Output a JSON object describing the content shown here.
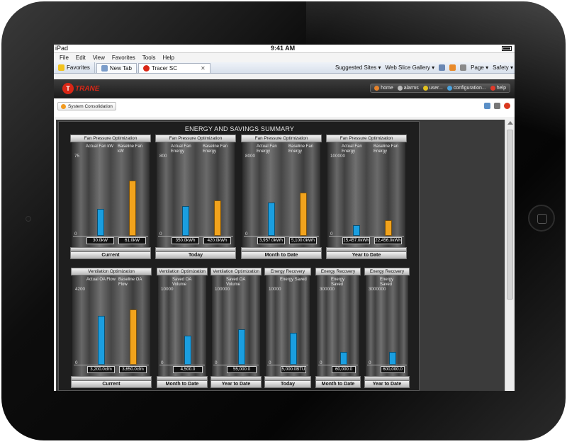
{
  "device": {
    "carrier": "iPad",
    "time": "9:41 AM"
  },
  "browser": {
    "menu": [
      "File",
      "Edit",
      "View",
      "Favorites",
      "Tools",
      "Help"
    ],
    "favorites_label": "Favorites",
    "tabs": [
      {
        "label": "New Tab"
      },
      {
        "label": "Tracer SC"
      }
    ],
    "tools": {
      "suggested": "Suggested Sites ▾",
      "webslice": "Web Slice Gallery ▾",
      "page": "Page ▾",
      "safety": "Safety ▾"
    }
  },
  "app": {
    "logo_text": "TRANE",
    "nav": {
      "home": "home",
      "alarms": "alarms",
      "user": "user...",
      "configuration": "configuration...",
      "help": "help"
    },
    "breadcrumb": "System Consolidation",
    "title": "ENERGY AND SAVINGS SUMMARY"
  },
  "colors": {
    "blue": "#1a9ee0",
    "orange": "#f2a31c"
  },
  "chart_data": [
    {
      "type": "bar",
      "title": "Fan Pressure Optimization",
      "period": "Current",
      "ymax": "75",
      "ymin": "0",
      "ylim": [
        0,
        75
      ],
      "series": [
        {
          "name": "Actual Fan kW",
          "value": 30.0,
          "label": "30.0kW",
          "color": "blue"
        },
        {
          "name": "Baseline Fan kW",
          "value": 61.0,
          "label": "61.0kW",
          "color": "orange"
        }
      ]
    },
    {
      "type": "bar",
      "title": "Fan Pressure Optimization",
      "period": "Today",
      "ymax": "800",
      "ymin": "0",
      "ylim": [
        0,
        800
      ],
      "series": [
        {
          "name": "Actual Fan Energy",
          "value": 350.0,
          "label": "350.0kWh",
          "color": "blue"
        },
        {
          "name": "Baseline Fan Energy",
          "value": 420.0,
          "label": "420.0kWh",
          "color": "orange"
        }
      ]
    },
    {
      "type": "bar",
      "title": "Fan Pressure Optimization",
      "period": "Month to Date",
      "ymax": "8000",
      "ymin": "0",
      "ylim": [
        0,
        8000
      ],
      "series": [
        {
          "name": "Actual Fan Energy",
          "value": 3957.0,
          "label": "3,957.0kWh",
          "color": "blue"
        },
        {
          "name": "Baseline Fan Energy",
          "value": 5100.0,
          "label": "5,100.0kWh",
          "color": "orange"
        }
      ]
    },
    {
      "type": "bar",
      "title": "Fan Pressure Optimization",
      "period": "Year to Date",
      "ymax": "100000",
      "ymin": "0",
      "ylim": [
        0,
        100000
      ],
      "series": [
        {
          "name": "Actual Fan Energy",
          "value": 15457.0,
          "label": "15,457.0kWh",
          "color": "blue"
        },
        {
          "name": "Baseline Fan Energy",
          "value": 22456.0,
          "label": "22,456.0kWh",
          "color": "orange"
        }
      ]
    },
    {
      "type": "bar",
      "title": "Ventilation Optimization",
      "period": "Current",
      "ymax": "4200",
      "ymin": "0",
      "ylim": [
        0,
        4200
      ],
      "series": [
        {
          "name": "Actual OA Flow",
          "value": 3200.0,
          "label": "3,200.0cfm",
          "color": "blue"
        },
        {
          "name": "Baseline OA Flow",
          "value": 3650.0,
          "label": "3,650.0cfm",
          "color": "orange"
        }
      ]
    },
    {
      "type": "bar",
      "title": "Ventilation Optimization",
      "period": "Month to Date",
      "ymax": "10000",
      "ymin": "0",
      "ylim": [
        0,
        10000
      ],
      "series": [
        {
          "name": "Saved OA Volume",
          "value": 4500.0,
          "label": "4,500.0",
          "color": "blue"
        }
      ]
    },
    {
      "type": "bar",
      "title": "Ventilation Optimization",
      "period": "Year to Date",
      "ymax": "100000",
      "ymin": "0",
      "ylim": [
        0,
        100000
      ],
      "series": [
        {
          "name": "Saved OA Volume",
          "value": 55000.0,
          "label": "55,000.0",
          "color": "blue"
        }
      ]
    },
    {
      "type": "bar",
      "title": "Energy Recovery",
      "period": "Today",
      "ymax": "10000",
      "ymin": "0",
      "ylim": [
        0,
        10000
      ],
      "series": [
        {
          "name": "Energy Saved",
          "value": 5000.0,
          "label": "5,000.0BTU",
          "color": "blue"
        }
      ]
    },
    {
      "type": "bar",
      "title": "Energy Recovery",
      "period": "Month to Date",
      "ymax": "300000",
      "ymin": "0",
      "ylim": [
        0,
        300000
      ],
      "series": [
        {
          "name": "Energy Saved",
          "value": 60000.0,
          "label": "60,000.0",
          "color": "blue"
        }
      ]
    },
    {
      "type": "bar",
      "title": "Energy Recovery",
      "period": "Year to Date",
      "ymax": "3000000",
      "ymin": "0",
      "ylim": [
        0,
        3000000
      ],
      "series": [
        {
          "name": "Energy Saved",
          "value": 600000.0,
          "label": "600,000.0",
          "color": "blue"
        }
      ]
    }
  ]
}
